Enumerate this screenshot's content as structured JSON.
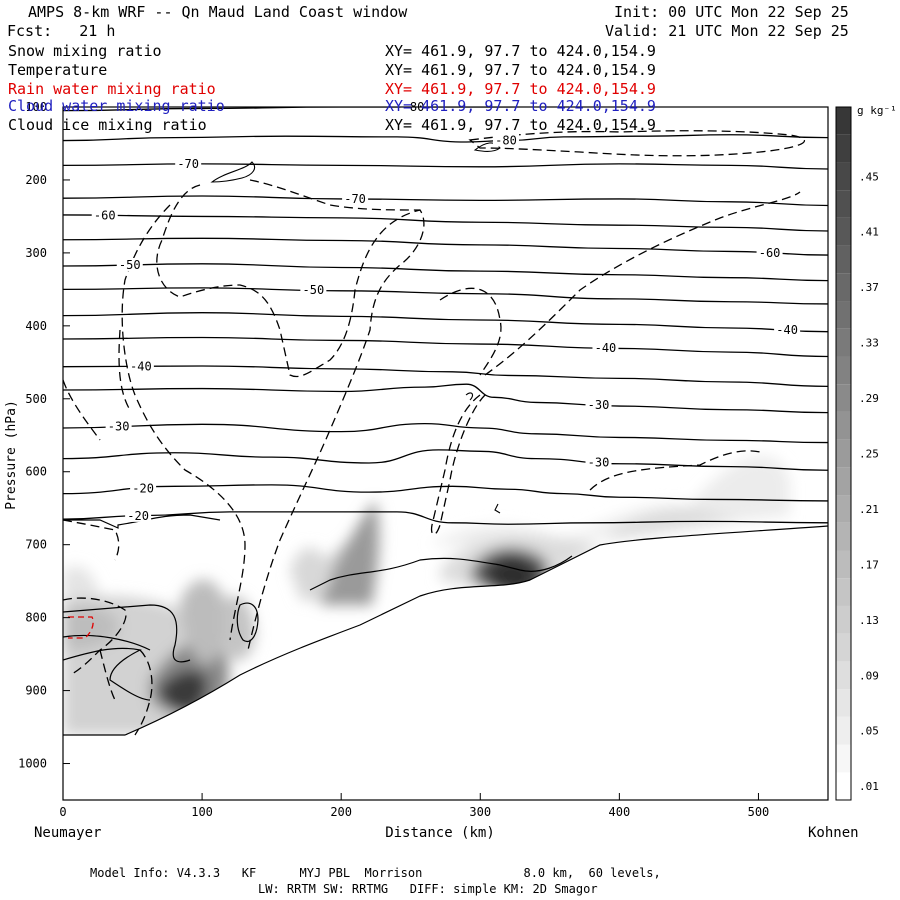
{
  "header": {
    "title": "AMPS 8-km WRF -- Qn Maud Land Coast window",
    "init": "Init: 00 UTC Mon 22 Sep 25",
    "fcst": "Fcst:   21 h",
    "valid": "Valid: 21 UTC Mon 22 Sep 25"
  },
  "legend": [
    {
      "label": "Snow mixing ratio",
      "xy": "XY= 461.9, 97.7 to 424.0,154.9",
      "color": "#000000"
    },
    {
      "label": "Temperature",
      "xy": "XY= 461.9, 97.7 to 424.0,154.9",
      "color": "#000000"
    },
    {
      "label": "Rain water mixing ratio",
      "xy": "XY= 461.9, 97.7 to 424.0,154.9",
      "color": "#e00000"
    },
    {
      "label": "Cloud water mixing ratio",
      "xy": "XY= 461.9, 97.7 to 424.0,154.9",
      "color": "#2020c0"
    },
    {
      "label": "Cloud ice mixing ratio",
      "xy": "XY= 461.9, 97.7 to 424.0,154.9",
      "color": "#000000"
    }
  ],
  "footer": {
    "line1": "Model Info: V4.3.3   KF      MYJ PBL  Morrison              8.0 km,  60 levels,",
    "line2": "LW: RRTM SW: RRTMG   DIFF: simple KM: 2D Smagor"
  },
  "chart_data": {
    "type": "contour",
    "title": "AMPS 8-km WRF -- Qn Maud Land Coast window",
    "xlabel": "Distance (km)",
    "ylabel": "Pressure (hPa)",
    "x_start_label": "Neumayer",
    "x_end_label": "Kohnen",
    "xlim": [
      0,
      550
    ],
    "ylim": [
      1050,
      100
    ],
    "xticks": [
      0,
      100,
      200,
      300,
      400,
      500
    ],
    "yticks": [
      100,
      200,
      300,
      400,
      500,
      600,
      700,
      800,
      900,
      1000
    ],
    "colorbar": {
      "unit": "g kg⁻¹",
      "levels": [
        0.01,
        0.03,
        0.05,
        0.07,
        0.09,
        0.11,
        0.13,
        0.15,
        0.17,
        0.19,
        0.21,
        0.23,
        0.25,
        0.27,
        0.29,
        0.31,
        0.33,
        0.35,
        0.37,
        0.39,
        0.41,
        0.43,
        0.45,
        0.47,
        0.49
      ],
      "tick_labels": [
        ".01",
        ".05",
        ".09",
        ".13",
        ".17",
        ".21",
        ".25",
        ".29",
        ".33",
        ".37",
        ".41",
        ".45"
      ]
    },
    "temperature_contours": [
      {
        "label": "-80",
        "points": [
          [
            0,
            105
          ],
          [
            100,
            102
          ],
          [
            200,
            100
          ],
          [
            300,
            100
          ],
          [
            420,
            98
          ],
          [
            500,
            96
          ],
          [
            530,
            95
          ]
        ]
      },
      {
        "label": "-80",
        "points": [
          [
            0,
            146
          ],
          [
            80,
            142
          ],
          [
            160,
            140
          ],
          [
            240,
            141
          ],
          [
            290,
            148
          ],
          [
            320,
            146
          ],
          [
            360,
            141
          ],
          [
            420,
            140
          ],
          [
            480,
            138
          ],
          [
            550,
            142
          ]
        ]
      },
      {
        "label": "-70",
        "points": [
          [
            0,
            180
          ],
          [
            100,
            178
          ],
          [
            200,
            180
          ],
          [
            300,
            182
          ],
          [
            400,
            178
          ],
          [
            480,
            180
          ],
          [
            550,
            185
          ]
        ]
      },
      {
        "label": "-70",
        "points": [
          [
            0,
            225
          ],
          [
            100,
            222
          ],
          [
            200,
            226
          ],
          [
            300,
            228
          ],
          [
            400,
            226
          ],
          [
            480,
            230
          ],
          [
            550,
            235
          ]
        ]
      },
      {
        "label": "-60",
        "points": [
          [
            0,
            248
          ],
          [
            100,
            250
          ],
          [
            200,
            252
          ],
          [
            300,
            258
          ],
          [
            400,
            262
          ],
          [
            480,
            265
          ],
          [
            550,
            270
          ]
        ]
      },
      {
        "label": "-60",
        "points": [
          [
            0,
            282
          ],
          [
            100,
            280
          ],
          [
            200,
            283
          ],
          [
            300,
            289
          ],
          [
            400,
            294
          ],
          [
            480,
            298
          ],
          [
            550,
            303
          ]
        ]
      },
      {
        "label": "-50",
        "points": [
          [
            0,
            318
          ],
          [
            100,
            315
          ],
          [
            200,
            320
          ],
          [
            300,
            325
          ],
          [
            400,
            330
          ],
          [
            480,
            334
          ],
          [
            550,
            338
          ]
        ]
      },
      {
        "label": "-50",
        "points": [
          [
            0,
            350
          ],
          [
            100,
            348
          ],
          [
            200,
            352
          ],
          [
            300,
            356
          ],
          [
            400,
            363
          ],
          [
            480,
            367
          ],
          [
            550,
            370
          ]
        ]
      },
      {
        "label": "-40",
        "points": [
          [
            0,
            386
          ],
          [
            100,
            382
          ],
          [
            200,
            387
          ],
          [
            300,
            392
          ],
          [
            400,
            398
          ],
          [
            480,
            403
          ],
          [
            550,
            408
          ]
        ]
      },
      {
        "label": "-40",
        "points": [
          [
            0,
            418
          ],
          [
            100,
            416
          ],
          [
            200,
            420
          ],
          [
            300,
            425
          ],
          [
            400,
            431
          ],
          [
            480,
            436
          ],
          [
            550,
            442
          ]
        ]
      },
      {
        "label": "-40",
        "points": [
          [
            0,
            456
          ],
          [
            100,
            455
          ],
          [
            200,
            459
          ],
          [
            280,
            463
          ],
          [
            320,
            468
          ],
          [
            400,
            472
          ],
          [
            480,
            477
          ],
          [
            550,
            483
          ]
        ]
      },
      {
        "label": "-30",
        "points": [
          [
            0,
            488
          ],
          [
            100,
            486
          ],
          [
            200,
            490
          ],
          [
            260,
            484
          ],
          [
            290,
            480
          ],
          [
            310,
            498
          ],
          [
            340,
            505
          ],
          [
            400,
            510
          ],
          [
            480,
            515
          ],
          [
            550,
            519
          ]
        ]
      },
      {
        "label": "-30",
        "points": [
          [
            0,
            540
          ],
          [
            100,
            535
          ],
          [
            200,
            545
          ],
          [
            260,
            534
          ],
          [
            300,
            540
          ],
          [
            340,
            548
          ],
          [
            400,
            553
          ],
          [
            480,
            557
          ],
          [
            550,
            560
          ]
        ]
      },
      {
        "label": "-30",
        "points": [
          [
            0,
            582
          ],
          [
            80,
            574
          ],
          [
            150,
            580
          ],
          [
            220,
            588
          ],
          [
            270,
            570
          ],
          [
            300,
            572
          ],
          [
            340,
            582
          ],
          [
            400,
            589
          ],
          [
            480,
            593
          ],
          [
            550,
            598
          ]
        ]
      },
      {
        "label": "-20",
        "points": [
          [
            0,
            630
          ],
          [
            80,
            620
          ],
          [
            150,
            618
          ],
          [
            220,
            628
          ],
          [
            280,
            620
          ],
          [
            320,
            624
          ],
          [
            360,
            630
          ],
          [
            400,
            635
          ],
          [
            470,
            638
          ],
          [
            550,
            640
          ]
        ]
      },
      {
        "label": "-20",
        "points": [
          [
            0,
            665
          ],
          [
            60,
            660
          ],
          [
            120,
            655
          ],
          [
            180,
            655
          ],
          [
            240,
            655
          ],
          [
            280,
            670
          ],
          [
            320,
            672
          ],
          [
            380,
            670
          ],
          [
            460,
            668
          ],
          [
            550,
            670
          ]
        ]
      }
    ],
    "series": [
      {
        "name": "Snow mixing ratio",
        "style": "filled",
        "max_value": 0.47
      },
      {
        "name": "Temperature",
        "style": "solid contour",
        "levels": [
          -80,
          -70,
          -60,
          -50,
          -40,
          -30,
          -20
        ]
      },
      {
        "name": "Rain water mixing ratio",
        "style": "red dashed contour"
      },
      {
        "name": "Cloud water mixing ratio",
        "style": "blue contour"
      },
      {
        "name": "Cloud ice mixing ratio",
        "style": "dashed contour"
      }
    ]
  }
}
